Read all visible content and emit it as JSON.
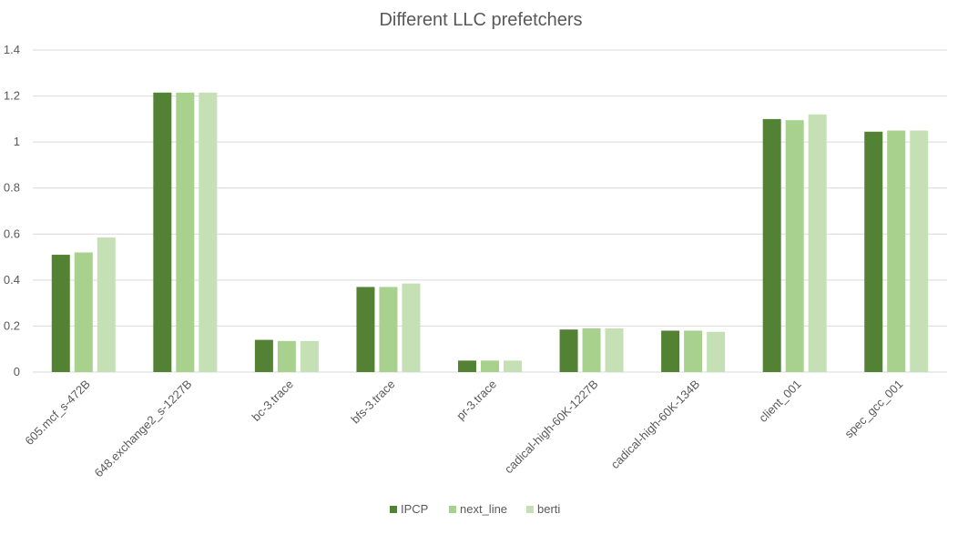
{
  "chart_data": {
    "type": "bar",
    "title": "Different LLC prefetchers",
    "xlabel": "",
    "ylabel": "",
    "ylim": [
      0,
      1.4
    ],
    "yticks": [
      0,
      0.2,
      0.4,
      0.6,
      0.8,
      1,
      1.2,
      1.4
    ],
    "ytick_labels": [
      "0",
      "0.2",
      "0.4",
      "0.6",
      "0.8",
      "1",
      "1.2",
      "1.4"
    ],
    "grid": true,
    "legend_position": "bottom",
    "categories": [
      "605.mcf_s-472B",
      "648.exchange2_s-1227B",
      "bc-3.trace",
      "bfs-3.trace",
      "pr-3.trace",
      "cadical-high-60K-1227B",
      "cadical-high-60K-134B",
      "client_001",
      "spec_gcc_001"
    ],
    "series": [
      {
        "name": "IPCP",
        "color": "#548235",
        "values": [
          0.51,
          1.215,
          0.14,
          0.37,
          0.05,
          0.185,
          0.18,
          1.1,
          1.045
        ]
      },
      {
        "name": "next_line",
        "color": "#a9d18e",
        "values": [
          0.52,
          1.215,
          0.135,
          0.37,
          0.05,
          0.19,
          0.18,
          1.095,
          1.05
        ]
      },
      {
        "name": "berti",
        "color": "#c5e0b4",
        "values": [
          0.585,
          1.215,
          0.135,
          0.385,
          0.05,
          0.19,
          0.175,
          1.12,
          1.05
        ]
      }
    ],
    "colors": {
      "gridline": "#d9d9d9",
      "axis": "#d9d9d9",
      "text": "#595959"
    }
  }
}
